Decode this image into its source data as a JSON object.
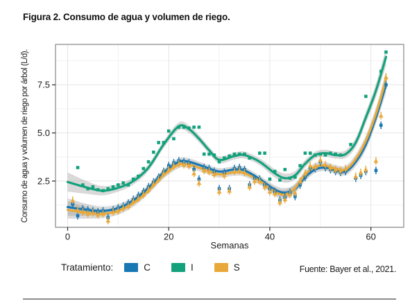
{
  "figure": {
    "title": "Figura 2. Consumo de agua y volumen de riego.",
    "source": "Fuente: Bayer et al., 2021."
  },
  "legend": {
    "label": "Tratamiento:",
    "entries": [
      {
        "key": "C",
        "color": "#1878b4"
      },
      {
        "key": "I",
        "color": "#13a17c"
      },
      {
        "key": "S",
        "color": "#e9a93a"
      }
    ]
  },
  "colors": {
    "band": "#9a9a9a",
    "grid_major": "#e4e4e4",
    "grid_minor": "#f1f1f1",
    "panel_border": "#8e8e8e",
    "tick": "#333333",
    "text": "#1a1a1a"
  },
  "chart_data": {
    "type": "scatter",
    "subtype": "scatter points with loess smooth curves and gray confidence bands",
    "title": "Figura 2. Consumo de agua y volumen de riego.",
    "xlabel": "Semanas",
    "ylabel": "Consumo de agua y volumen de riego por árbol (L/d).",
    "legend_title": "Tratamiento:",
    "xlim": [
      -2.4,
      66.5
    ],
    "ylim": [
      0.1,
      9.6
    ],
    "x_ticks": [
      0,
      20,
      40,
      60
    ],
    "y_ticks": [
      "2.5",
      "5.0",
      "7.5"
    ],
    "x_minor_grid": [
      10,
      30,
      50
    ],
    "y_minor_grid": [
      1.25,
      3.75,
      6.25,
      8.75
    ],
    "grid": true,
    "legend_position": "bottom",
    "series": [
      {
        "name": "C",
        "color": "#1878b4",
        "marker": "square",
        "error_bars": true,
        "points": [
          [
            1,
            1.3
          ],
          [
            2,
            0.7
          ],
          [
            3,
            1.05
          ],
          [
            4,
            1.0
          ],
          [
            5,
            0.95
          ],
          [
            6,
            0.9
          ],
          [
            7,
            0.95
          ],
          [
            8,
            0.6
          ],
          [
            9,
            1.0
          ],
          [
            10,
            1.1
          ],
          [
            11,
            1.2
          ],
          [
            12,
            1.35
          ],
          [
            13,
            1.55
          ],
          [
            14,
            1.75
          ],
          [
            15,
            1.95
          ],
          [
            16,
            2.2
          ],
          [
            17,
            2.45
          ],
          [
            18,
            2.7
          ],
          [
            19,
            3.0
          ],
          [
            20,
            3.3
          ],
          [
            21,
            3.45
          ],
          [
            22,
            3.55
          ],
          [
            23,
            3.5
          ],
          [
            24,
            3.45
          ],
          [
            25,
            3.1
          ],
          [
            26,
            2.6
          ],
          [
            27,
            3.2
          ],
          [
            28,
            3.15
          ],
          [
            29,
            3.0
          ],
          [
            30,
            2.1
          ],
          [
            31,
            2.95
          ],
          [
            32,
            2.1
          ],
          [
            33,
            3.15
          ],
          [
            34,
            3.2
          ],
          [
            35,
            3.1
          ],
          [
            36,
            2.3
          ],
          [
            37,
            2.65
          ],
          [
            38,
            2.6
          ],
          [
            39,
            2.3
          ],
          [
            40,
            2.1
          ],
          [
            41,
            1.95
          ],
          [
            42,
            1.5
          ],
          [
            43,
            1.65
          ],
          [
            44,
            1.9
          ],
          [
            45,
            1.7
          ],
          [
            46,
            2.3
          ],
          [
            47,
            2.7
          ],
          [
            48,
            3.2
          ],
          [
            49,
            3.15
          ],
          [
            50,
            3.5
          ],
          [
            51,
            3.2
          ],
          [
            52,
            3.1
          ],
          [
            53,
            3.0
          ],
          [
            54,
            2.95
          ],
          [
            55,
            3.0
          ],
          [
            57,
            2.65
          ],
          [
            58,
            2.8
          ],
          [
            59,
            3.0
          ],
          [
            61,
            3.05
          ],
          [
            62,
            5.4
          ],
          [
            63,
            7.5
          ]
        ],
        "curve": [
          [
            0,
            1.15,
            0.45
          ],
          [
            4,
            1.0,
            0.3
          ],
          [
            7,
            0.95,
            0.22
          ],
          [
            10,
            1.1,
            0.2
          ],
          [
            13,
            1.5,
            0.18
          ],
          [
            16,
            2.15,
            0.17
          ],
          [
            19,
            2.95,
            0.17
          ],
          [
            22,
            3.5,
            0.18
          ],
          [
            24,
            3.5,
            0.18
          ],
          [
            27,
            3.25,
            0.17
          ],
          [
            30,
            3.0,
            0.17
          ],
          [
            33,
            3.1,
            0.17
          ],
          [
            35,
            3.05,
            0.17
          ],
          [
            38,
            2.6,
            0.18
          ],
          [
            41,
            2.05,
            0.22
          ],
          [
            43,
            1.9,
            0.24
          ],
          [
            45,
            2.1,
            0.22
          ],
          [
            47,
            2.7,
            0.2
          ],
          [
            49,
            3.1,
            0.18
          ],
          [
            51,
            3.2,
            0.18
          ],
          [
            53,
            3.05,
            0.18
          ],
          [
            55,
            3.0,
            0.2
          ],
          [
            57,
            3.5,
            0.24
          ],
          [
            59,
            4.4,
            0.28
          ],
          [
            61,
            5.8,
            0.32
          ],
          [
            63,
            7.5,
            0.42
          ]
        ]
      },
      {
        "name": "I",
        "color": "#13a17c",
        "marker": "square",
        "error_bars": false,
        "points": [
          [
            2,
            3.2
          ],
          [
            3,
            2.3
          ],
          [
            4,
            2.1
          ],
          [
            5,
            2.2
          ],
          [
            6,
            2.05
          ],
          [
            7,
            2.0
          ],
          [
            8,
            2.1
          ],
          [
            9,
            2.2
          ],
          [
            10,
            2.3
          ],
          [
            11,
            2.4
          ],
          [
            12,
            2.3
          ],
          [
            13,
            2.6
          ],
          [
            14,
            2.75
          ],
          [
            15,
            3.15
          ],
          [
            16,
            3.5
          ],
          [
            17,
            4.0
          ],
          [
            18,
            4.5
          ],
          [
            19,
            4.5
          ],
          [
            20,
            5.1
          ],
          [
            21,
            4.7
          ],
          [
            22,
            5.3
          ],
          [
            23,
            5.3
          ],
          [
            24,
            5.25
          ],
          [
            25,
            5.3
          ],
          [
            26,
            5.3
          ],
          [
            27,
            3.9
          ],
          [
            28,
            3.9
          ],
          [
            29,
            3.85
          ],
          [
            30,
            3.5
          ],
          [
            31,
            3.7
          ],
          [
            32,
            3.8
          ],
          [
            33,
            3.9
          ],
          [
            34,
            3.9
          ],
          [
            35,
            3.9
          ],
          [
            36,
            3.7
          ],
          [
            38,
            3.95
          ],
          [
            39,
            3.95
          ],
          [
            40,
            2.6
          ],
          [
            41,
            3.0
          ],
          [
            42,
            2.55
          ],
          [
            43,
            3.1
          ],
          [
            44,
            2.65
          ],
          [
            45,
            2.7
          ],
          [
            46,
            3.3
          ],
          [
            47,
            3.95
          ],
          [
            48,
            3.95
          ],
          [
            49,
            3.85
          ],
          [
            50,
            3.9
          ],
          [
            51,
            3.85
          ],
          [
            52,
            3.95
          ],
          [
            53,
            3.9
          ],
          [
            54,
            3.85
          ],
          [
            56,
            4.4
          ],
          [
            59,
            6.9
          ],
          [
            62,
            8.2
          ],
          [
            63,
            9.2
          ]
        ],
        "curve": [
          [
            0,
            2.45,
            0.5
          ],
          [
            4,
            2.15,
            0.32
          ],
          [
            7,
            2.0,
            0.24
          ],
          [
            10,
            2.15,
            0.2
          ],
          [
            13,
            2.5,
            0.19
          ],
          [
            16,
            3.2,
            0.18
          ],
          [
            19,
            4.4,
            0.19
          ],
          [
            22,
            5.35,
            0.2
          ],
          [
            24,
            5.2,
            0.2
          ],
          [
            26,
            4.7,
            0.19
          ],
          [
            28,
            4.1,
            0.18
          ],
          [
            30,
            3.6,
            0.18
          ],
          [
            33,
            3.8,
            0.18
          ],
          [
            35,
            3.85,
            0.18
          ],
          [
            38,
            3.5,
            0.18
          ],
          [
            41,
            2.9,
            0.22
          ],
          [
            43,
            2.65,
            0.24
          ],
          [
            45,
            2.8,
            0.22
          ],
          [
            47,
            3.4,
            0.2
          ],
          [
            49,
            3.85,
            0.18
          ],
          [
            51,
            3.95,
            0.18
          ],
          [
            53,
            3.85,
            0.18
          ],
          [
            55,
            3.9,
            0.2
          ],
          [
            57,
            4.5,
            0.25
          ],
          [
            59,
            5.8,
            0.3
          ],
          [
            61,
            7.2,
            0.35
          ],
          [
            63,
            8.95,
            0.45
          ]
        ]
      },
      {
        "name": "S",
        "color": "#e9a93a",
        "marker": "triangle",
        "error_bars": true,
        "points": [
          [
            1,
            1.5
          ],
          [
            2,
            1.0
          ],
          [
            3,
            0.9
          ],
          [
            4,
            0.8
          ],
          [
            5,
            0.85
          ],
          [
            6,
            0.75
          ],
          [
            7,
            0.8
          ],
          [
            8,
            0.45
          ],
          [
            9,
            0.9
          ],
          [
            10,
            0.95
          ],
          [
            11,
            1.1
          ],
          [
            12,
            1.2
          ],
          [
            13,
            1.45
          ],
          [
            14,
            1.6
          ],
          [
            15,
            1.8
          ],
          [
            16,
            2.05
          ],
          [
            17,
            2.35
          ],
          [
            18,
            2.6
          ],
          [
            19,
            2.9
          ],
          [
            20,
            3.1
          ],
          [
            21,
            3.3
          ],
          [
            22,
            3.4
          ],
          [
            23,
            3.35
          ],
          [
            24,
            3.3
          ],
          [
            25,
            2.9
          ],
          [
            26,
            2.4
          ],
          [
            27,
            3.05
          ],
          [
            28,
            3.0
          ],
          [
            29,
            2.85
          ],
          [
            30,
            1.95
          ],
          [
            31,
            2.8
          ],
          [
            32,
            2.0
          ],
          [
            33,
            3.0
          ],
          [
            34,
            3.05
          ],
          [
            35,
            2.95
          ],
          [
            36,
            2.2
          ],
          [
            37,
            2.5
          ],
          [
            38,
            2.5
          ],
          [
            39,
            2.2
          ],
          [
            40,
            1.95
          ],
          [
            41,
            1.85
          ],
          [
            42,
            1.4
          ],
          [
            43,
            1.55
          ],
          [
            44,
            1.8
          ],
          [
            45,
            1.9
          ],
          [
            46,
            2.5
          ],
          [
            47,
            2.9
          ],
          [
            48,
            3.3
          ],
          [
            49,
            3.25
          ],
          [
            50,
            3.6
          ],
          [
            51,
            3.35
          ],
          [
            52,
            3.2
          ],
          [
            53,
            3.1
          ],
          [
            54,
            3.05
          ],
          [
            55,
            3.15
          ],
          [
            57,
            2.75
          ],
          [
            58,
            2.95
          ],
          [
            59,
            3.1
          ],
          [
            61,
            3.55
          ],
          [
            62,
            5.9
          ],
          [
            63,
            7.9
          ]
        ],
        "curve": [
          [
            0,
            1.0,
            0.45
          ],
          [
            4,
            0.85,
            0.3
          ],
          [
            7,
            0.8,
            0.22
          ],
          [
            10,
            0.95,
            0.2
          ],
          [
            13,
            1.35,
            0.18
          ],
          [
            16,
            2.0,
            0.17
          ],
          [
            19,
            2.8,
            0.17
          ],
          [
            22,
            3.35,
            0.18
          ],
          [
            24,
            3.35,
            0.18
          ],
          [
            27,
            3.1,
            0.17
          ],
          [
            30,
            2.85,
            0.17
          ],
          [
            33,
            2.95,
            0.17
          ],
          [
            35,
            2.9,
            0.17
          ],
          [
            38,
            2.5,
            0.18
          ],
          [
            41,
            1.95,
            0.22
          ],
          [
            43,
            1.8,
            0.24
          ],
          [
            45,
            2.15,
            0.22
          ],
          [
            47,
            2.85,
            0.2
          ],
          [
            49,
            3.25,
            0.18
          ],
          [
            51,
            3.3,
            0.18
          ],
          [
            53,
            3.15,
            0.18
          ],
          [
            55,
            3.1,
            0.2
          ],
          [
            57,
            3.65,
            0.24
          ],
          [
            59,
            4.6,
            0.28
          ],
          [
            61,
            6.0,
            0.32
          ],
          [
            63,
            7.8,
            0.42
          ]
        ]
      }
    ]
  }
}
